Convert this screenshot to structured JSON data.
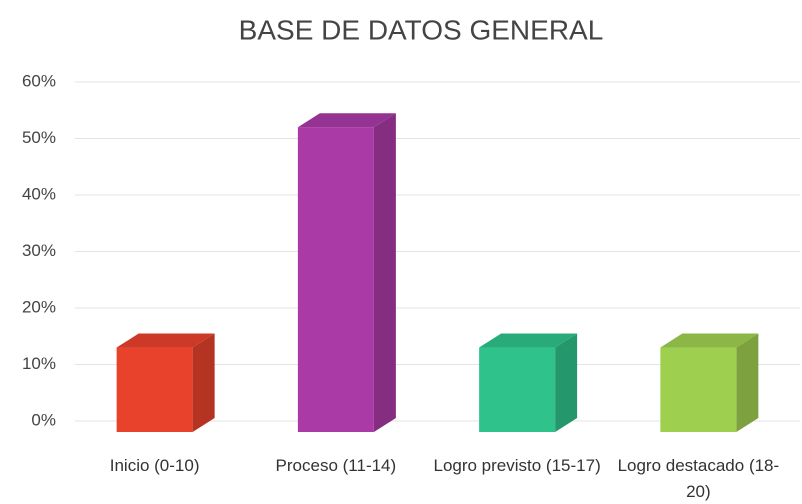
{
  "chart_data": {
    "type": "bar3d",
    "title": "BASE DE DATOS GENERAL",
    "categories": [
      "Inicio (0-10)",
      "Proceso (11-14)",
      "Logro previsto (15-17)",
      "Logro destacado (18-20)"
    ],
    "values": [
      13,
      52,
      13,
      13
    ],
    "colors": [
      "#e8412c",
      "#a93aa6",
      "#2fc28a",
      "#9fcf4f"
    ],
    "ylim": [
      0,
      60
    ],
    "yticks": [
      {
        "value": 0,
        "label": "0%"
      },
      {
        "value": 10,
        "label": "10%"
      },
      {
        "value": 20,
        "label": "20%"
      },
      {
        "value": 30,
        "label": "30%"
      },
      {
        "value": 40,
        "label": "40%"
      },
      {
        "value": 50,
        "label": "50%"
      },
      {
        "value": 60,
        "label": "60%"
      }
    ],
    "grid": true
  }
}
